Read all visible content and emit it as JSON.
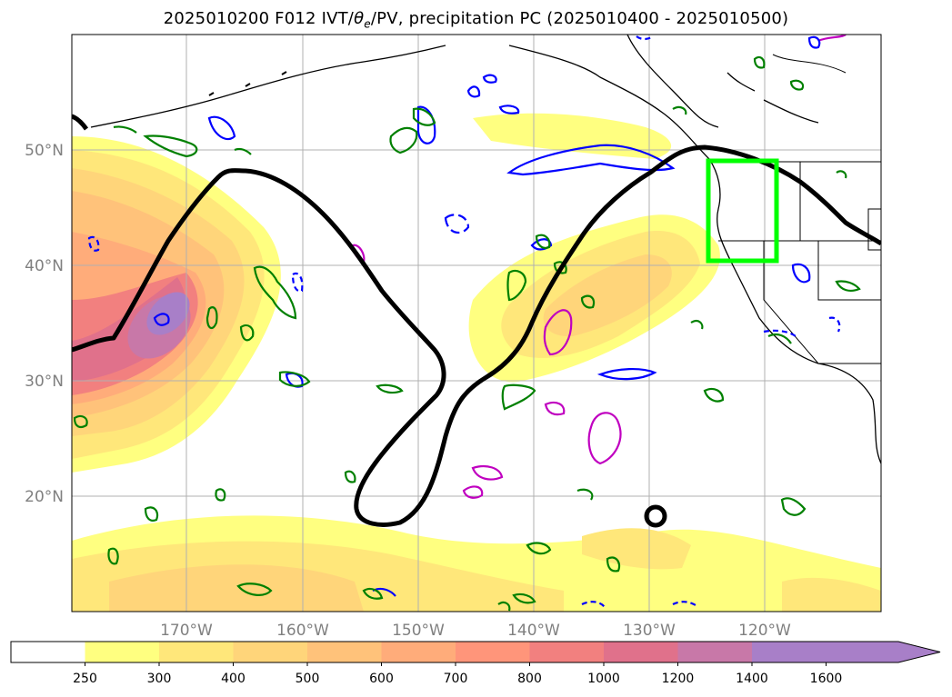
{
  "title": {
    "prefix": "2025010200 F012 IVT/",
    "theta": "θ",
    "theta_sub": "e",
    "suffix": "/PV, precipitation PC (2025010400 - 2025010500)"
  },
  "map": {
    "lat_labels": [
      "50°N",
      "40°N",
      "30°N",
      "20°N"
    ],
    "lon_labels": [
      "170°W",
      "160°W",
      "150°W",
      "140°W",
      "130°W",
      "120°W"
    ],
    "colors": {
      "coast": "#000000",
      "grid": "#b0b0b0",
      "highlight_box": "#00ff00",
      "ivt_contour": "#000000",
      "theta_contour": "#0000ff",
      "pv_contour_green": "#008000",
      "pv_contour_magenta": "#c000c0"
    }
  },
  "colorbar": {
    "ticks": [
      "250",
      "300",
      "400",
      "500",
      "600",
      "700",
      "800",
      "1000",
      "1200",
      "1400",
      "1600"
    ],
    "colors": [
      "#ffffff",
      "#ffff80",
      "#ffe77a",
      "#ffd57a",
      "#ffc27a",
      "#ffac7a",
      "#ff957a",
      "#f2807f",
      "#e0718b",
      "#c878a8",
      "#a87fc8"
    ]
  }
}
